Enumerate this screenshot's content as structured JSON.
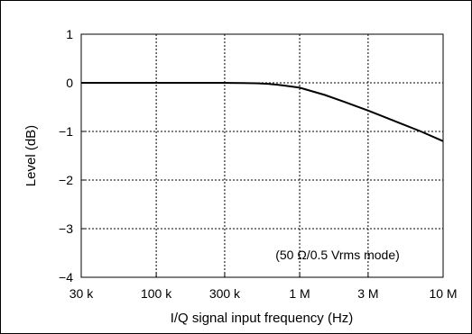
{
  "chart_data": {
    "type": "line",
    "xscale": "log",
    "xlabel": "I/Q signal input frequency (Hz)",
    "ylabel": "Level (dB)",
    "xlim": [
      30000,
      10000000
    ],
    "ylim": [
      -4,
      1
    ],
    "grid": true,
    "x_ticks": [
      {
        "value": 30000,
        "label": "30 k"
      },
      {
        "value": 100000,
        "label": "100 k"
      },
      {
        "value": 300000,
        "label": "300 k"
      },
      {
        "value": 1000000,
        "label": "1 M"
      },
      {
        "value": 3000000,
        "label": "3 M"
      },
      {
        "value": 10000000,
        "label": "10 M"
      }
    ],
    "y_ticks": [
      {
        "value": 1,
        "label": "1"
      },
      {
        "value": 0,
        "label": "0"
      },
      {
        "value": -1,
        "label": "−1"
      },
      {
        "value": -2,
        "label": "−2"
      },
      {
        "value": -3,
        "label": "−3"
      },
      {
        "value": -4,
        "label": "−4"
      }
    ],
    "annotation": "(50 Ω/0.5 Vrms mode)",
    "series": [
      {
        "x": [
          30000,
          100000,
          300000,
          400000,
          500000,
          600000,
          700000,
          800000,
          1000000,
          1500000,
          2000000,
          3000000,
          5000000,
          7000000,
          10000000
        ],
        "y": [
          0,
          0,
          0,
          -0.005,
          -0.01,
          -0.02,
          -0.04,
          -0.06,
          -0.1,
          -0.25,
          -0.38,
          -0.57,
          -0.83,
          -1.0,
          -1.2
        ],
        "color": "#000000"
      }
    ]
  }
}
